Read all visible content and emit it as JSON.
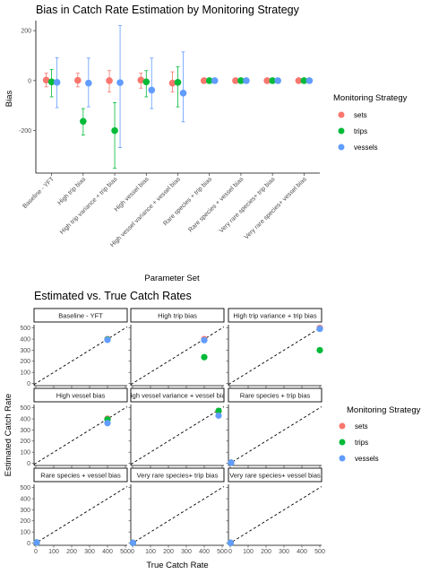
{
  "colors": {
    "sets": "#F8766D",
    "trips": "#00BA38",
    "vessels": "#619CFF"
  },
  "legend": {
    "title": "Monitoring Strategy",
    "items": [
      {
        "key": "sets",
        "label": "sets"
      },
      {
        "key": "trips",
        "label": "trips"
      },
      {
        "key": "vessels",
        "label": "vessels"
      }
    ]
  },
  "chart_data": [
    {
      "type": "scatter",
      "title": "Bias in Catch Rate Estimation by Monitoring Strategy",
      "xlabel": "Parameter Set",
      "ylabel": "Bias",
      "ylim": [
        -370,
        240
      ],
      "yticks": [
        200,
        0,
        -200
      ],
      "categories": [
        "Baseline - YFT",
        "High trip bias",
        "High trip variance + trip bias",
        "High vessel bias",
        "High vessel variance + vessel bias",
        "Rare species + trip bias",
        "Rare species + vessel bias",
        "Very rare species+ trip bias",
        "Very rare species+ vessel bias"
      ],
      "series": [
        {
          "key": "sets",
          "name": "sets",
          "values": [
            2,
            1,
            0,
            2,
            -10,
            0,
            0,
            0,
            0
          ],
          "err_low": [
            -25,
            -25,
            -45,
            -30,
            -45,
            -2,
            -2,
            -2,
            -2
          ],
          "err_high": [
            30,
            30,
            40,
            30,
            35,
            2,
            2,
            2,
            2
          ]
        },
        {
          "key": "trips",
          "name": "trips",
          "values": [
            -5,
            -163,
            -200,
            -5,
            -7,
            0,
            0,
            0,
            0
          ],
          "err_low": [
            -65,
            -218,
            -350,
            -65,
            -105,
            -2,
            -2,
            -2,
            -2
          ],
          "err_high": [
            45,
            -112,
            -88,
            40,
            55,
            2,
            2,
            2,
            2
          ]
        },
        {
          "key": "vessels",
          "name": "vessels",
          "values": [
            -7,
            -10,
            -8,
            -38,
            -50,
            0,
            0,
            0,
            0
          ],
          "err_low": [
            -108,
            -105,
            -268,
            -112,
            -165,
            -2,
            -2,
            -2,
            -2
          ],
          "err_high": [
            92,
            90,
            220,
            90,
            115,
            2,
            2,
            2,
            2
          ]
        }
      ]
    },
    {
      "type": "scatter",
      "title": "Estimated vs. True Catch Rates",
      "xlabel": "True Catch Rate",
      "ylabel": "Estimated Catch Rate",
      "xlim": [
        -10,
        510
      ],
      "ylim": [
        -20,
        530
      ],
      "xticks": [
        0,
        100,
        200,
        300,
        400,
        500
      ],
      "yticks": [
        0,
        100,
        200,
        300,
        400,
        500
      ],
      "reference_line": "y = x (dashed)",
      "facets": [
        {
          "label": "Baseline - YFT",
          "points": [
            {
              "key": "sets",
              "x": 400,
              "y": 400
            },
            {
              "key": "trips",
              "x": 400,
              "y": 397
            },
            {
              "key": "vessels",
              "x": 400,
              "y": 393
            }
          ]
        },
        {
          "label": "High trip bias",
          "points": [
            {
              "key": "sets",
              "x": 400,
              "y": 400
            },
            {
              "key": "trips",
              "x": 400,
              "y": 237
            },
            {
              "key": "vessels",
              "x": 400,
              "y": 390
            }
          ]
        },
        {
          "label": "High trip variance + trip bias",
          "points": [
            {
              "key": "sets",
              "x": 500,
              "y": 500
            },
            {
              "key": "trips",
              "x": 500,
              "y": 300
            },
            {
              "key": "vessels",
              "x": 500,
              "y": 492
            }
          ]
        },
        {
          "label": "High vessel bias",
          "points": [
            {
              "key": "sets",
              "x": 400,
              "y": 402
            },
            {
              "key": "trips",
              "x": 400,
              "y": 395
            },
            {
              "key": "vessels",
              "x": 400,
              "y": 362
            }
          ]
        },
        {
          "label": "High vessel variance + vessel bias",
          "points": [
            {
              "key": "sets",
              "x": 480,
              "y": 470
            },
            {
              "key": "trips",
              "x": 480,
              "y": 473
            },
            {
              "key": "vessels",
              "x": 480,
              "y": 430
            }
          ]
        },
        {
          "label": "Rare species + trip bias",
          "points": [
            {
              "key": "sets",
              "x": 5,
              "y": 5
            },
            {
              "key": "trips",
              "x": 5,
              "y": 5
            },
            {
              "key": "vessels",
              "x": 5,
              "y": 5
            }
          ]
        },
        {
          "label": "Rare species + vessel bias",
          "points": [
            {
              "key": "sets",
              "x": 5,
              "y": 5
            },
            {
              "key": "trips",
              "x": 5,
              "y": 5
            },
            {
              "key": "vessels",
              "x": 5,
              "y": 5
            }
          ]
        },
        {
          "label": "Very rare species+ trip bias",
          "points": [
            {
              "key": "sets",
              "x": 2,
              "y": 2
            },
            {
              "key": "trips",
              "x": 2,
              "y": 2
            },
            {
              "key": "vessels",
              "x": 2,
              "y": 2
            }
          ]
        },
        {
          "label": "Very rare species+ vessel bias",
          "points": [
            {
              "key": "sets",
              "x": 2,
              "y": 2
            },
            {
              "key": "trips",
              "x": 2,
              "y": 2
            },
            {
              "key": "vessels",
              "x": 2,
              "y": 2
            }
          ]
        }
      ]
    }
  ]
}
